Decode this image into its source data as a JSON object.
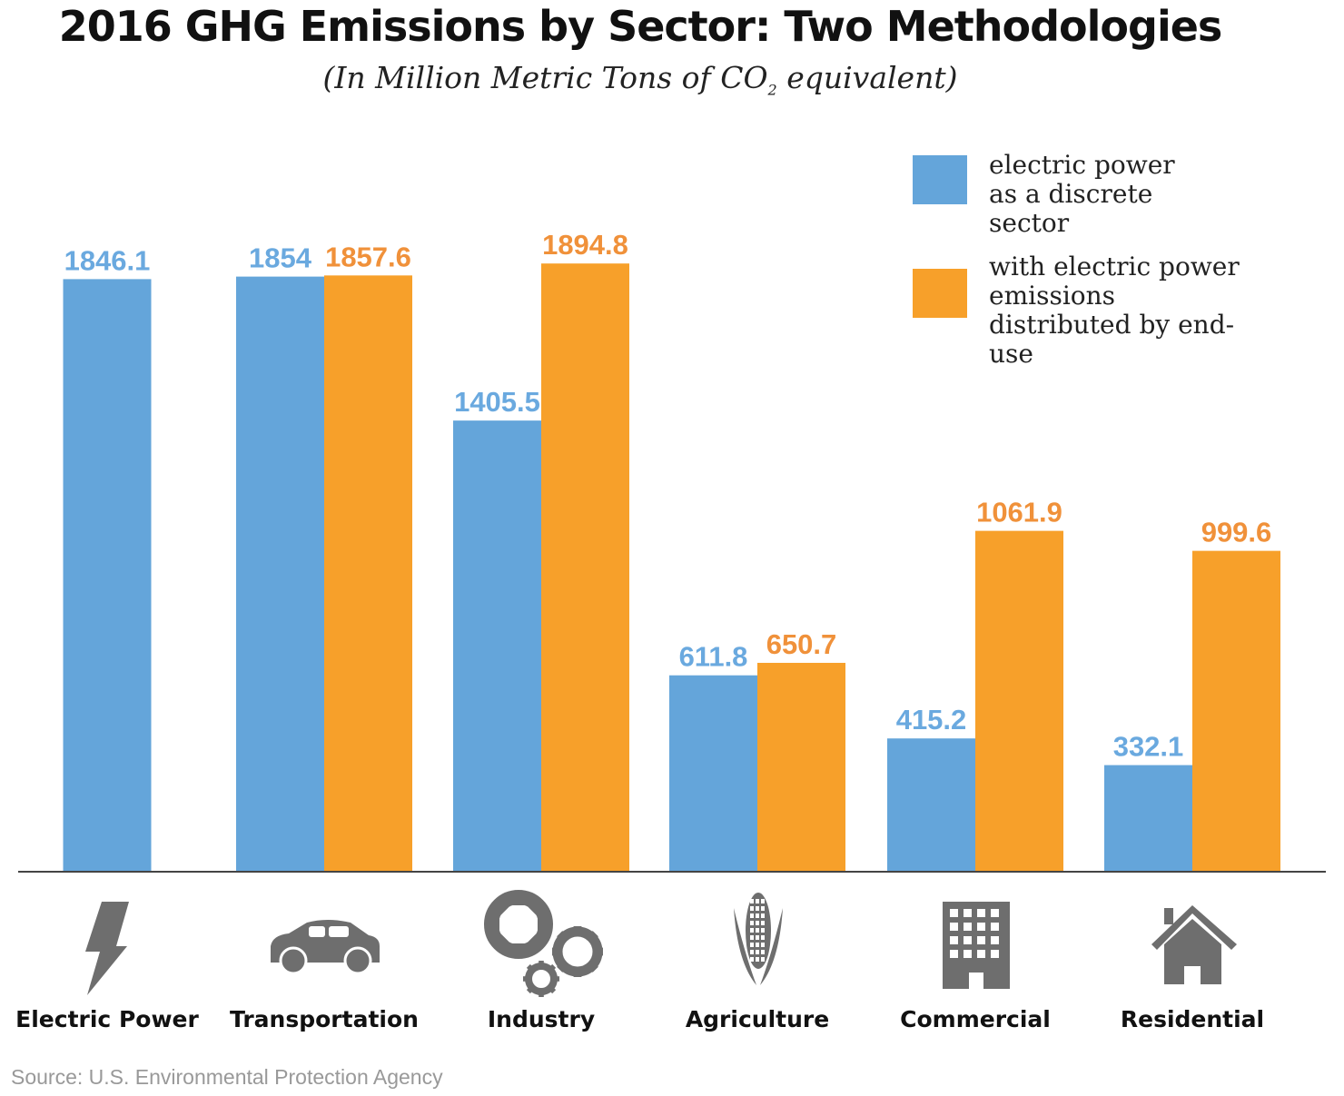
{
  "title": "2016 GHG Emissions by Sector: Two Methodologies",
  "subtitle_prefix": "(In Million Metric Tons of CO",
  "subtitle_sub": "2",
  "subtitle_suffix": " equivalent)",
  "source": "Source: U.S. Environmental Protection Agency",
  "colors": {
    "discrete": "#64a5da",
    "distributed": "#f7a02a",
    "discrete_label": "#6aa9df",
    "distributed_label": "#f0913a",
    "icon": "#6e6e6e"
  },
  "chart_data": {
    "type": "bar",
    "title": "2016 GHG Emissions by Sector: Two Methodologies",
    "subtitle": "(In Million Metric Tons of CO2 equivalent)",
    "categories": [
      "Electric Power",
      "Transportation",
      "Industry",
      "Agriculture",
      "Commercial",
      "Residential"
    ],
    "icons": [
      "lightning-icon",
      "car-icon",
      "gears-icon",
      "corn-icon",
      "building-icon",
      "house-icon"
    ],
    "series": [
      {
        "name": "electric power as a discrete sector",
        "values": [
          1846.1,
          1854,
          1405.5,
          611.8,
          415.2,
          332.1
        ],
        "labels": [
          "1846.1",
          "1854",
          "1405.5",
          "611.8",
          "415.2",
          "332.1"
        ]
      },
      {
        "name": "with electric power emissions distributed by end-use",
        "values": [
          null,
          1857.6,
          1894.8,
          650.7,
          1061.9,
          999.6
        ],
        "labels": [
          "",
          "1857.6",
          "1894.8",
          "650.7",
          "1061.9",
          "999.6"
        ]
      }
    ],
    "ylim": [
      0,
      1900
    ],
    "grid": false,
    "legend": "top-right",
    "data_labels": true
  }
}
